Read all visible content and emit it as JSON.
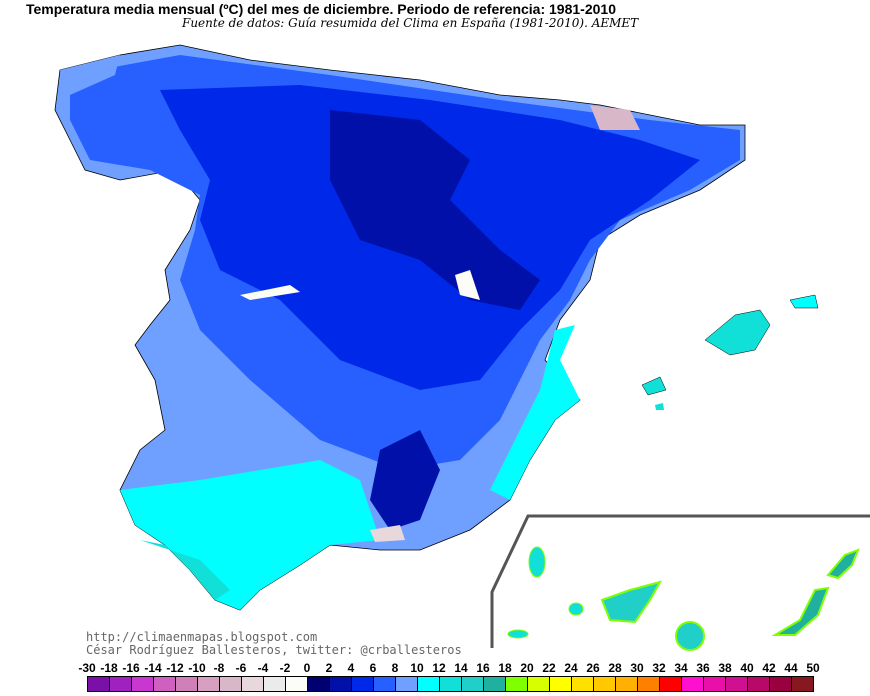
{
  "title": "Temperatura media mensual (ºC) del mes de diciembre. Periodo de referencia: 1981-2010",
  "subtitle": "Fuente de datos: Guía resumida del Clima en España (1981-2010). AEMET",
  "credits": {
    "url": "http://climaenmapas.blogspot.com",
    "author": "César Rodríguez Ballesteros, twitter: @crballesteros"
  },
  "legend": {
    "unit": "ºC",
    "labels": [
      "-30",
      "-18",
      "-16",
      "-14",
      "-12",
      "-10",
      "-8",
      "-6",
      "-4",
      "-2",
      "0",
      "2",
      "4",
      "6",
      "8",
      "10",
      "12",
      "14",
      "16",
      "18",
      "20",
      "22",
      "24",
      "26",
      "28",
      "30",
      "32",
      "34",
      "36",
      "38",
      "40",
      "42",
      "44",
      "50"
    ],
    "colors": [
      "#7a10a8",
      "#a020c0",
      "#c838d0",
      "#d060c0",
      "#d080b8",
      "#d8a0c0",
      "#d8b8c8",
      "#e8d8dc",
      "#ebebeb",
      "#fdfdf8",
      "#000070",
      "#0010a8",
      "#0028e8",
      "#2860ff",
      "#70a0ff",
      "#00ffff",
      "#10e0d8",
      "#20d0c8",
      "#20b0a0",
      "#80ff00",
      "#d8ff00",
      "#ffff00",
      "#ffe000",
      "#ffc800",
      "#ffb000",
      "#ff8000",
      "#ff0000",
      "#ff10d0",
      "#e810a8",
      "#d01090",
      "#b80868",
      "#980040",
      "#881820"
    ]
  }
}
